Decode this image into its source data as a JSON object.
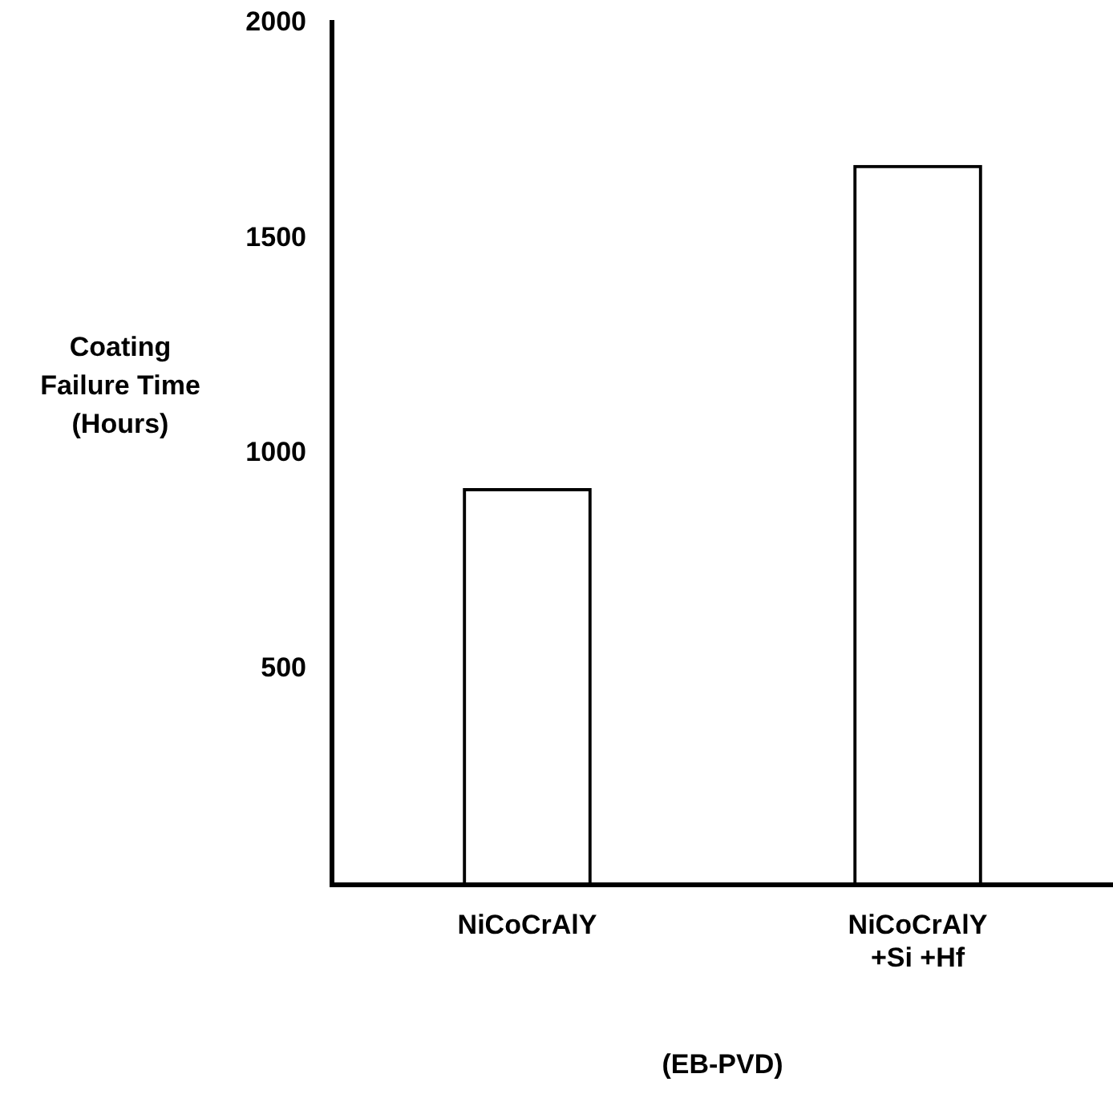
{
  "chart_data": {
    "type": "bar",
    "xlabel": "(EB-PVD)",
    "ylabel": "Coating Failure Time (Hours)",
    "categories": [
      "NiCoCrAlY",
      "NiCoCrAlY\n+Si +Hf"
    ],
    "values": [
      920,
      1670
    ],
    "color": "#000000",
    "ylim": [
      0,
      2000
    ],
    "yticks": [
      500,
      1000,
      1500,
      2000
    ],
    "grid": false,
    "legend": false
  }
}
